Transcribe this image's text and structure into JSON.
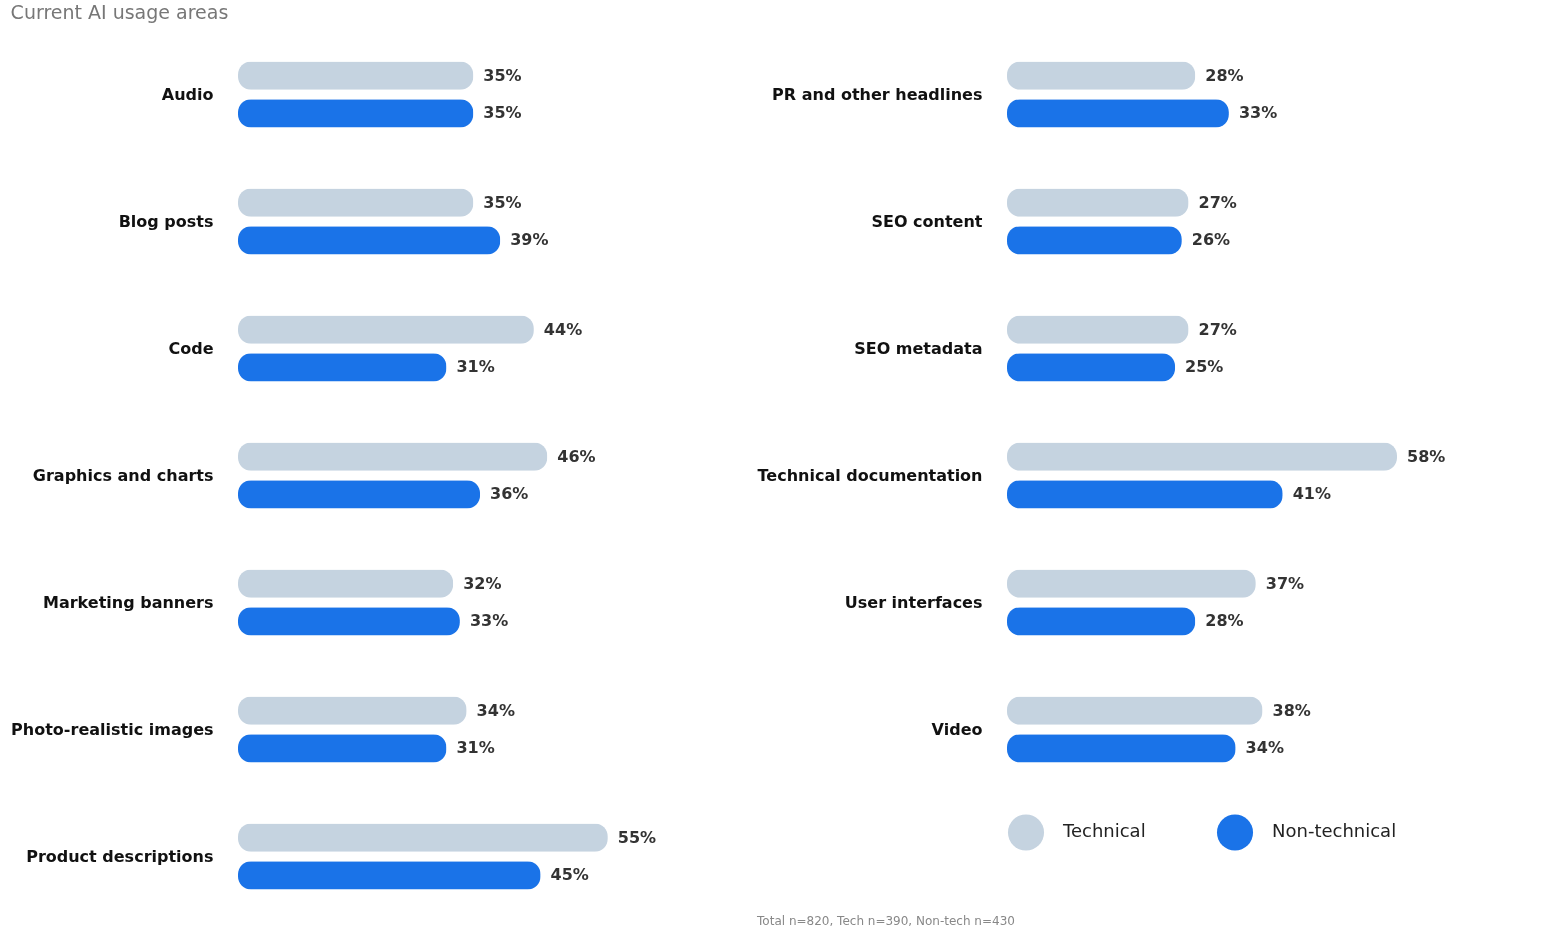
{
  "chart_data": [
    {
      "type": "bar",
      "orientation": "horizontal",
      "title": "Current AI usage areas",
      "legend": false,
      "categories": [
        "Audio",
        "Blog posts",
        "Code",
        "Graphics and charts",
        "Marketing banners",
        "Photo-realistic images",
        "Product descriptions"
      ],
      "series": [
        {
          "color": "#c5d3e0",
          "values": [
            35,
            35,
            44,
            46,
            32,
            34,
            55
          ],
          "value_labels": [
            "35%",
            "35%",
            "44%",
            "46%",
            "32%",
            "34%",
            "55%"
          ]
        },
        {
          "color": "#1a73e8",
          "values": [
            35,
            39,
            31,
            36,
            33,
            31,
            45
          ],
          "value_labels": [
            "35%",
            "39%",
            "31%",
            "36%",
            "33%",
            "31%",
            "45%"
          ]
        }
      ]
    },
    {
      "type": "bar",
      "orientation": "horizontal",
      "legend": "bottom",
      "annotations": [
        "Total n=820, Tech n=390, Non-tech n=430"
      ],
      "categories": [
        "PR and other headlines",
        "SEO content",
        "SEO metadata",
        "Technical documentation",
        "User interfaces",
        "Video"
      ],
      "series": [
        {
          "name": "Technical",
          "color": "#c5d3e0",
          "values": [
            28,
            27,
            27,
            58,
            37,
            38
          ],
          "value_labels": [
            "28%",
            "27%",
            "27%",
            "58%",
            "37%",
            "38%"
          ]
        },
        {
          "name": "Non-technical",
          "color": "#1a73e8",
          "values": [
            33,
            26,
            25,
            41,
            28,
            34
          ],
          "value_labels": [
            "33%",
            "26%",
            "25%",
            "41%",
            "28%",
            "34%"
          ]
        }
      ]
    }
  ]
}
